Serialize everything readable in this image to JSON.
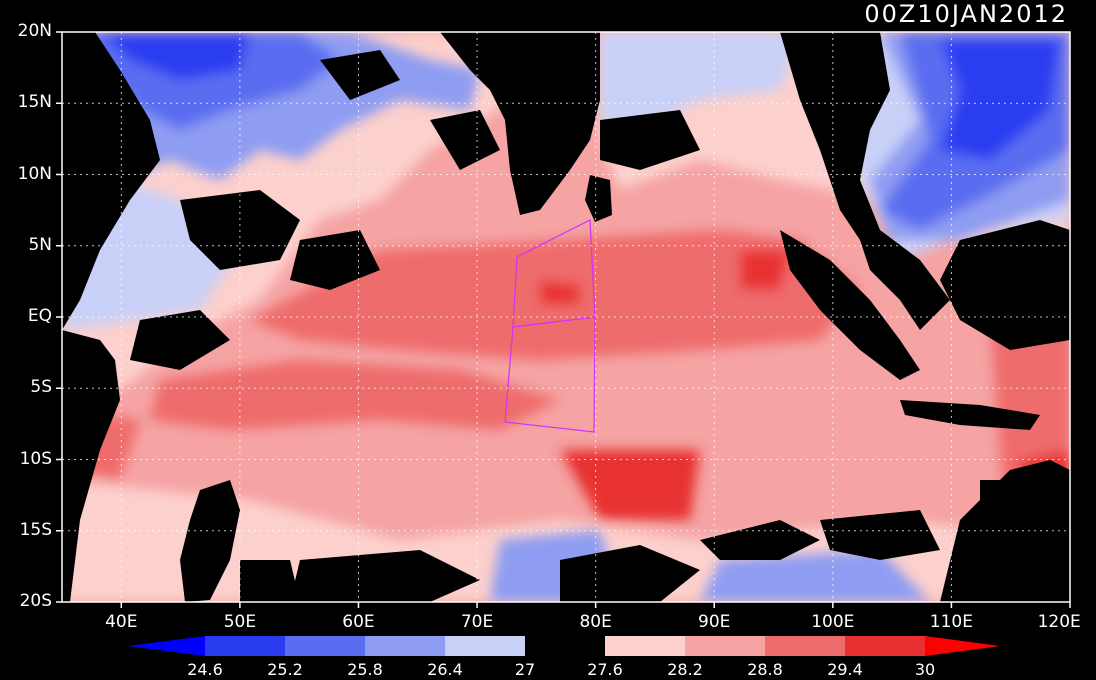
{
  "title": "00Z10JAN2012",
  "lat_labels": [
    "20N",
    "15N",
    "10N",
    "5N",
    "EQ",
    "5S",
    "10S",
    "15S",
    "20S"
  ],
  "lon_labels": [
    "40E",
    "50E",
    "60E",
    "70E",
    "80E",
    "90E",
    "100E",
    "110E",
    "120E"
  ],
  "colorbar": {
    "values": [
      "24.6",
      "25.2",
      "25.8",
      "26.4",
      "27",
      "27.6",
      "28.2",
      "28.8",
      "29.4",
      "30"
    ],
    "colors": [
      "#0000ff",
      "#2a3cf0",
      "#5a6df0",
      "#8e9cf2",
      "#c9d0f7",
      "#000000",
      "#fcd0cc",
      "#f5a3a3",
      "#ef6c6c",
      "#e83030",
      "#ff0000"
    ]
  },
  "map": {
    "lon_range": [
      35,
      120
    ],
    "lat_range": [
      -20,
      20
    ],
    "grid": true,
    "box_color": "#cc33ff"
  }
}
